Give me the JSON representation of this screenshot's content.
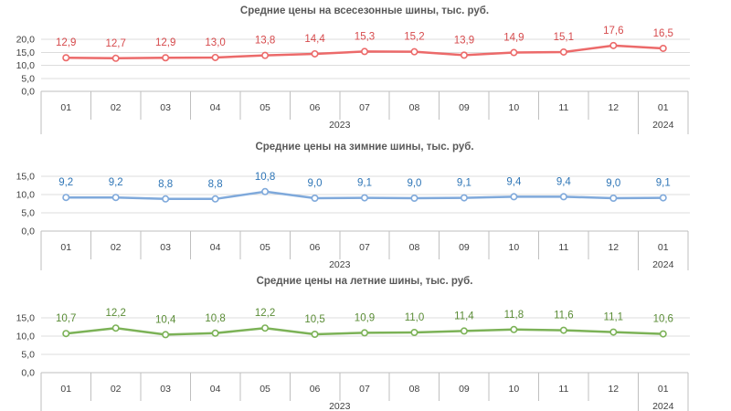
{
  "page": {
    "background_color": "#ffffff",
    "language": "ru"
  },
  "chart_data": [
    {
      "type": "line",
      "title": "Средние цены на всесезонные шины, тыс. руб.",
      "categories": [
        "01",
        "02",
        "03",
        "04",
        "05",
        "06",
        "07",
        "08",
        "09",
        "10",
        "11",
        "12",
        "01"
      ],
      "years": [
        {
          "label": "2023",
          "from": 0,
          "to": 11
        },
        {
          "label": "2024",
          "from": 12,
          "to": 12
        }
      ],
      "values": [
        12.9,
        12.7,
        12.9,
        13.0,
        13.8,
        14.4,
        15.3,
        15.2,
        13.9,
        14.9,
        15.1,
        17.6,
        16.5
      ],
      "value_labels": [
        "12,9",
        "12,7",
        "12,9",
        "13,0",
        "13,8",
        "14,4",
        "15,3",
        "15,2",
        "13,9",
        "14,9",
        "15,1",
        "17,6",
        "16,5"
      ],
      "y_ticks": [
        {
          "label": "20,0",
          "value": 20
        },
        {
          "label": "15,0",
          "value": 15
        },
        {
          "label": "10,0",
          "value": 10
        },
        {
          "label": "5,0",
          "value": 5
        },
        {
          "label": "0,0",
          "value": 0
        }
      ],
      "ylim": [
        0,
        20
      ],
      "grid": true,
      "legend": "none",
      "marker": "open-circle",
      "line_color": "#EC6A6A",
      "label_color": "#D64A4C"
    },
    {
      "type": "line",
      "title": "Средние цены на зимние шины, тыс. руб.",
      "categories": [
        "01",
        "02",
        "03",
        "04",
        "05",
        "06",
        "07",
        "08",
        "09",
        "10",
        "11",
        "12",
        "01"
      ],
      "years": [
        {
          "label": "2023",
          "from": 0,
          "to": 11
        },
        {
          "label": "2024",
          "from": 12,
          "to": 12
        }
      ],
      "values": [
        9.2,
        9.2,
        8.8,
        8.8,
        10.8,
        9.0,
        9.1,
        9.0,
        9.1,
        9.4,
        9.4,
        9.0,
        9.1
      ],
      "value_labels": [
        "9,2",
        "9,2",
        "8,8",
        "8,8",
        "10,8",
        "9,0",
        "9,1",
        "9,0",
        "9,1",
        "9,4",
        "9,4",
        "9,0",
        "9,1"
      ],
      "y_ticks": [
        {
          "label": "15,0",
          "value": 15
        },
        {
          "label": "10,0",
          "value": 10
        },
        {
          "label": "5,0",
          "value": 5
        },
        {
          "label": "0,0",
          "value": 0
        }
      ],
      "ylim": [
        0,
        15
      ],
      "grid": true,
      "legend": "none",
      "marker": "open-circle",
      "line_color": "#7FA9DB",
      "label_color": "#2E75B6"
    },
    {
      "type": "line",
      "title": "Средние цены на летние шины, тыс. руб.",
      "categories": [
        "01",
        "02",
        "03",
        "04",
        "05",
        "06",
        "07",
        "08",
        "09",
        "10",
        "11",
        "12",
        "01"
      ],
      "years": [
        {
          "label": "2023",
          "from": 0,
          "to": 11
        },
        {
          "label": "2024",
          "from": 12,
          "to": 12
        }
      ],
      "values": [
        10.7,
        12.2,
        10.4,
        10.8,
        12.2,
        10.5,
        10.9,
        11.0,
        11.4,
        11.8,
        11.6,
        11.1,
        10.6
      ],
      "value_labels": [
        "10,7",
        "12,2",
        "10,4",
        "10,8",
        "12,2",
        "10,5",
        "10,9",
        "11,0",
        "11,4",
        "11,8",
        "11,6",
        "11,1",
        "10,6"
      ],
      "y_ticks": [
        {
          "label": "15,0",
          "value": 15
        },
        {
          "label": "10,0",
          "value": 10
        },
        {
          "label": "5,0",
          "value": 5
        },
        {
          "label": "0,0",
          "value": 0
        }
      ],
      "ylim": [
        0,
        15
      ],
      "grid": true,
      "legend": "none",
      "marker": "open-circle",
      "line_color": "#7CB257",
      "label_color": "#5A8C36"
    }
  ],
  "style_colors": {
    "gridline": "#DCDCDC",
    "axis_line": "#BFBFBF",
    "axis_text": "#404040",
    "title_text": "#595959"
  }
}
